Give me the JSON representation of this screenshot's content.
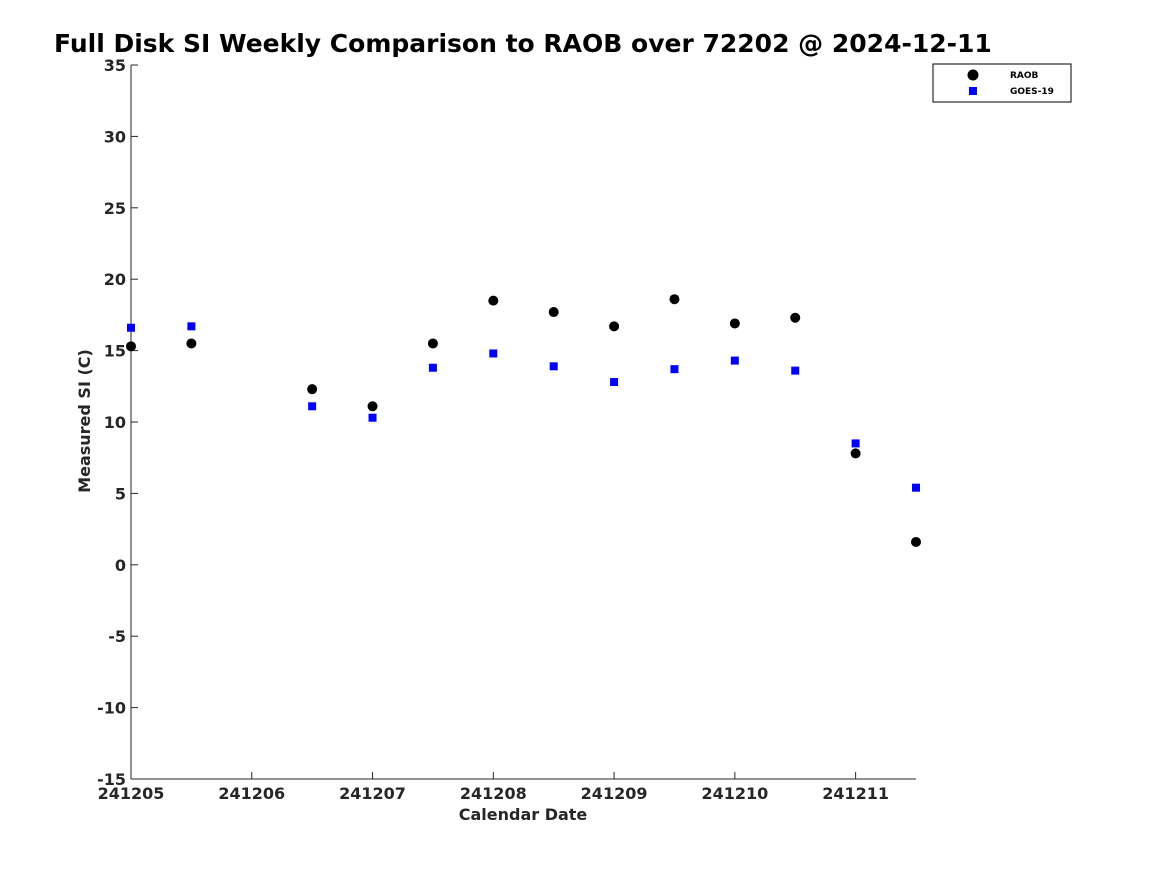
{
  "chart_data": {
    "type": "scatter",
    "title": "Full Disk SI Weekly Comparison to RAOB over 72202 @ 2024-12-11",
    "xlabel": "Calendar Date",
    "ylabel": "Measured SI (C)",
    "x_ticks": [
      "241205",
      "241206",
      "241207",
      "241208",
      "241209",
      "241210",
      "241211"
    ],
    "xlim": [
      "241205",
      "241211.5"
    ],
    "ylim": [
      -15,
      35
    ],
    "y_ticks": [
      -15,
      -10,
      -5,
      0,
      5,
      10,
      15,
      20,
      25,
      30,
      35
    ],
    "grid": false,
    "legend_position": "top-right",
    "series": [
      {
        "name": "RAOB",
        "marker": "circle",
        "color": "#000000",
        "points": [
          {
            "x": "241205.0",
            "y": 15.3
          },
          {
            "x": "241205.5",
            "y": 15.5
          },
          {
            "x": "241206.5",
            "y": 12.3
          },
          {
            "x": "241207.0",
            "y": 11.1
          },
          {
            "x": "241207.5",
            "y": 15.5
          },
          {
            "x": "241208.0",
            "y": 18.5
          },
          {
            "x": "241208.5",
            "y": 17.7
          },
          {
            "x": "241209.0",
            "y": 16.7
          },
          {
            "x": "241209.5",
            "y": 18.6
          },
          {
            "x": "241210.0",
            "y": 16.9
          },
          {
            "x": "241210.5",
            "y": 17.3
          },
          {
            "x": "241211.0",
            "y": 7.8
          },
          {
            "x": "241211.5",
            "y": 1.6
          }
        ]
      },
      {
        "name": "GOES-19",
        "marker": "square",
        "color": "#0000ff",
        "points": [
          {
            "x": "241205.0",
            "y": 16.6
          },
          {
            "x": "241205.5",
            "y": 16.7
          },
          {
            "x": "241206.5",
            "y": 11.1
          },
          {
            "x": "241207.0",
            "y": 10.3
          },
          {
            "x": "241207.5",
            "y": 13.8
          },
          {
            "x": "241208.0",
            "y": 14.8
          },
          {
            "x": "241208.5",
            "y": 13.9
          },
          {
            "x": "241209.0",
            "y": 12.8
          },
          {
            "x": "241209.5",
            "y": 13.7
          },
          {
            "x": "241210.0",
            "y": 14.3
          },
          {
            "x": "241210.5",
            "y": 13.6
          },
          {
            "x": "241211.0",
            "y": 8.5
          },
          {
            "x": "241211.5",
            "y": 5.4
          }
        ]
      }
    ]
  }
}
